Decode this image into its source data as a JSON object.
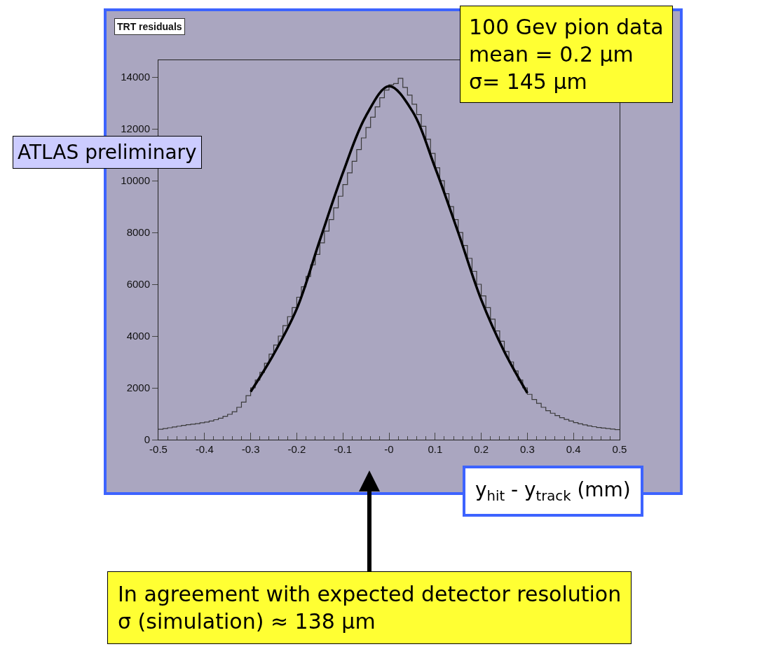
{
  "chart_data": {
    "type": "histogram",
    "title": "TRT residuals",
    "xlabel": "y$_{hit}$ - y$_{track}$ (mm)",
    "xlim": [
      -0.5,
      0.5
    ],
    "xticks": [
      {
        "value": -0.5,
        "label": "-0.5"
      },
      {
        "value": -0.4,
        "label": "-0.4"
      },
      {
        "value": -0.3,
        "label": "-0.3"
      },
      {
        "value": -0.2,
        "label": "-0.2"
      },
      {
        "value": -0.1,
        "label": "-0.1"
      },
      {
        "value": 0,
        "label": "-0"
      },
      {
        "value": 0.1,
        "label": "0.1"
      },
      {
        "value": 0.2,
        "label": "0.2"
      },
      {
        "value": 0.3,
        "label": "0.3"
      },
      {
        "value": 0.4,
        "label": "0.4"
      },
      {
        "value": 0.5,
        "label": "0.5"
      }
    ],
    "ylim": [
      0,
      14650
    ],
    "yticks": [
      0,
      2000,
      4000,
      6000,
      8000,
      10000,
      12000,
      14000
    ],
    "grid": false,
    "series": [
      {
        "type": "histogram",
        "color": "#3a3a3a",
        "bins": [
          -0.5,
          -0.49,
          -0.48,
          -0.47,
          -0.46,
          -0.45,
          -0.44,
          -0.43,
          -0.42,
          -0.41,
          -0.4,
          -0.39,
          -0.38,
          -0.37,
          -0.36,
          -0.35,
          -0.34,
          -0.33,
          -0.32,
          -0.31,
          -0.3,
          -0.29,
          -0.28,
          -0.27,
          -0.26,
          -0.25,
          -0.24,
          -0.23,
          -0.22,
          -0.21,
          -0.2,
          -0.19,
          -0.18,
          -0.17,
          -0.16,
          -0.15,
          -0.14,
          -0.13,
          -0.12,
          -0.11,
          -0.1,
          -0.09,
          -0.08,
          -0.07,
          -0.06,
          -0.05,
          -0.04,
          -0.03,
          -0.02,
          -0.01,
          0,
          0.01,
          0.02,
          0.03,
          0.04,
          0.05,
          0.06,
          0.07,
          0.08,
          0.09,
          0.1,
          0.11,
          0.12,
          0.13,
          0.14,
          0.15,
          0.16,
          0.17,
          0.18,
          0.19,
          0.2,
          0.21,
          0.22,
          0.23,
          0.24,
          0.25,
          0.26,
          0.27,
          0.28,
          0.29,
          0.3,
          0.31,
          0.32,
          0.33,
          0.34,
          0.35,
          0.36,
          0.37,
          0.38,
          0.39,
          0.4,
          0.41,
          0.42,
          0.43,
          0.44,
          0.45,
          0.46,
          0.47,
          0.48,
          0.49,
          0.5
        ],
        "values": [
          400,
          430,
          460,
          490,
          520,
          550,
          580,
          600,
          620,
          650,
          680,
          720,
          770,
          830,
          900,
          980,
          1080,
          1250,
          1450,
          1700,
          2000,
          2300,
          2600,
          2950,
          3300,
          3650,
          4000,
          4400,
          4750,
          5100,
          5500,
          5900,
          6300,
          6750,
          7150,
          7600,
          8050,
          8500,
          8950,
          9400,
          9850,
          10300,
          10750,
          11200,
          11650,
          12050,
          12450,
          12850,
          13200,
          13500,
          13700,
          13750,
          13950,
          13600,
          13300,
          12950,
          12550,
          12100,
          11600,
          11050,
          10500,
          10000,
          9500,
          9000,
          8500,
          8000,
          7500,
          7000,
          6500,
          6000,
          5550,
          5100,
          4650,
          4200,
          3800,
          3400,
          3000,
          2650,
          2300,
          2000,
          1750,
          1550,
          1400,
          1250,
          1120,
          1020,
          930,
          850,
          780,
          720,
          660,
          610,
          570,
          530,
          500,
          470,
          450,
          430,
          410,
          390
        ]
      },
      {
        "type": "line",
        "color": "#000000",
        "line_style": "solid",
        "x": [
          -0.3,
          -0.25,
          -0.2,
          -0.15,
          -0.1,
          -0.05,
          0,
          0.05,
          0.1,
          0.15,
          0.2,
          0.25,
          0.3
        ],
        "values": [
          1850,
          3300,
          5050,
          7700,
          10300,
          12500,
          13650,
          12700,
          10500,
          8000,
          5400,
          3400,
          1800
        ]
      }
    ],
    "annotations": [
      "ATLAS preliminary",
      "100 Gev pion data\nmean = 0.2 μm\nσ= 145 μm",
      "In agreement with expected detector resolution\nσ (simulation) ≈ 138 μm"
    ]
  }
}
